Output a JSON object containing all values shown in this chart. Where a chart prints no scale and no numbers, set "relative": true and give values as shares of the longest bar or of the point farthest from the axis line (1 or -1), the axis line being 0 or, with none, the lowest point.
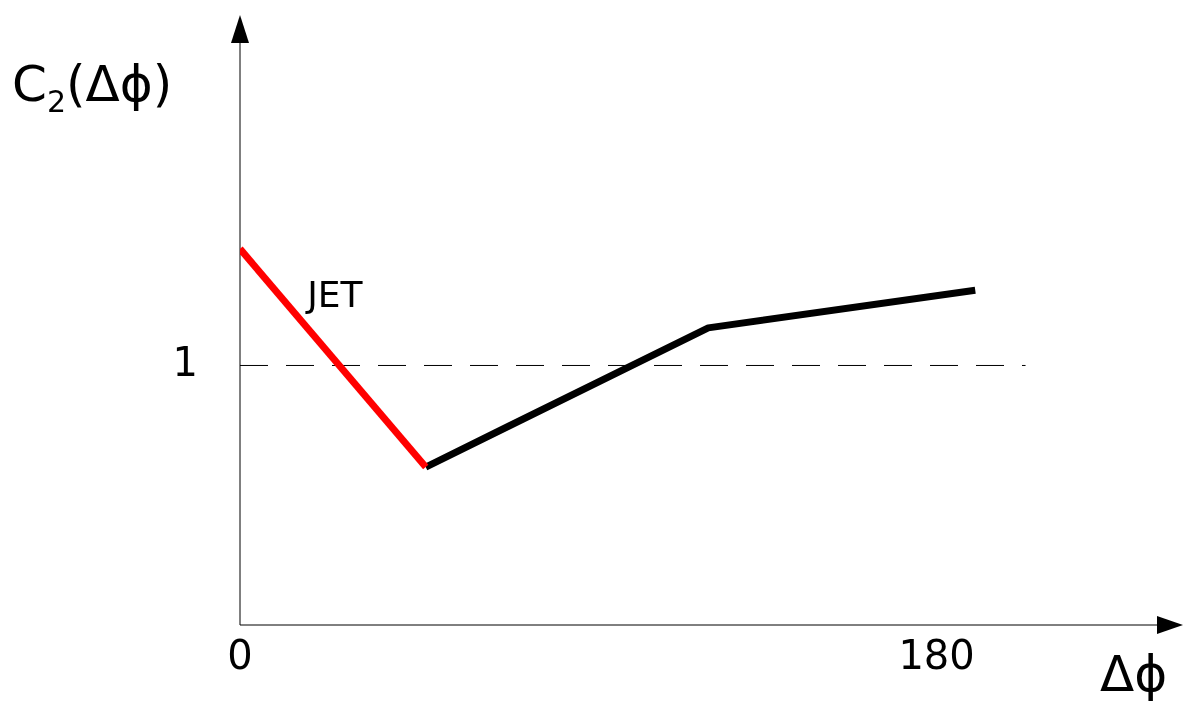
{
  "chart_data": {
    "type": "line",
    "relative": true,
    "xlabel": "Δϕ",
    "ylabel": "C$_{2}$(Δϕ)",
    "xlim": [
      0,
      238
    ],
    "xticks": [
      0,
      180
    ],
    "grid": false,
    "legend": false,
    "marker": "none",
    "line_style": "solid",
    "series": [
      {
        "color": "#ff0000",
        "x": [
          0,
          48
        ],
        "values": [
          1,
          0.42
        ]
      },
      {
        "color": "#000000",
        "x": [
          48,
          121,
          190
        ],
        "values": [
          0.42,
          0.79,
          0.89
        ]
      }
    ],
    "annotations": [
      "JET"
    ],
    "ref_lines": [
      {
        "axis": "y",
        "value": 0.69,
        "label": "1",
        "color": "#000000",
        "line_style": "dashed"
      }
    ]
  }
}
